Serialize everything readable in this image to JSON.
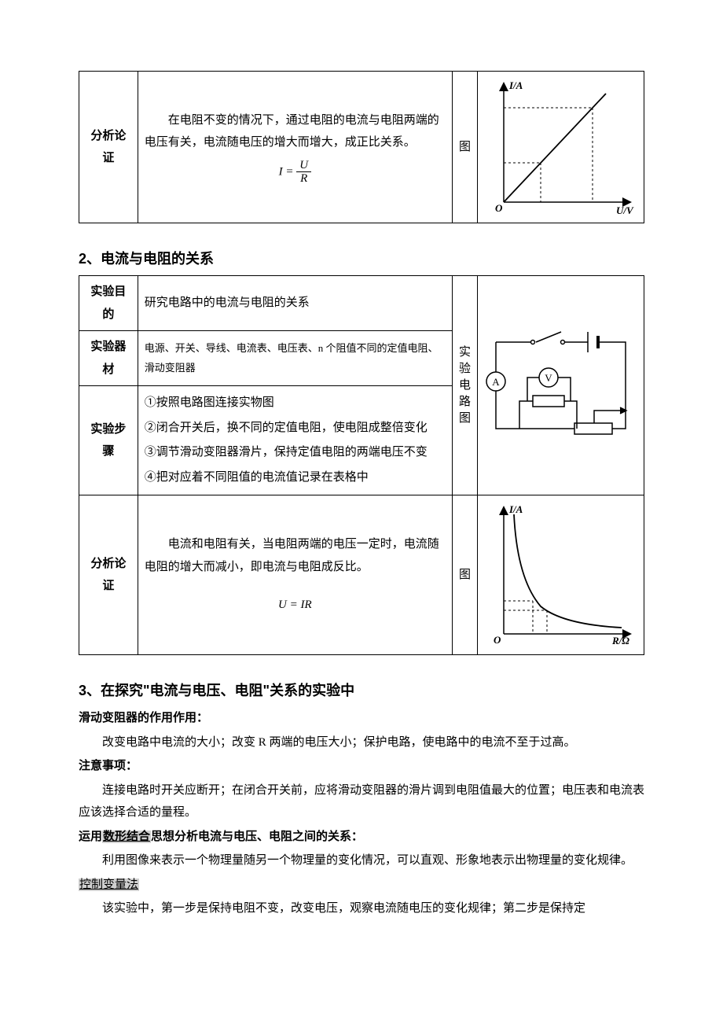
{
  "table1": {
    "row_label": "分析论证",
    "content": "在电阻不变的情况下，通过电阻的电流与电阻两端的电压有关，电流随电压的增大而增大，成正比关系。",
    "formula_left": "I",
    "formula_eq": " = ",
    "formula_num": "U",
    "formula_den": "R",
    "vert_label": "图",
    "graph": {
      "y_label": "I/A",
      "x_label": "U/V",
      "origin": "O",
      "axis_color": "#000000",
      "line_color": "#000000",
      "dash": "3,3"
    }
  },
  "section2": {
    "heading": "2、电流与电阻的关系",
    "rows": {
      "purpose_label": "实验目的",
      "purpose": "研究电路中的电流与电阻的关系",
      "equip_label": "实验器材",
      "equip": "电源、开关、导线、电流表、电压表、n 个阻值不同的定值电阻、滑动变阻器",
      "steps_label": "实验步骤",
      "step1": "①按照电路图连接实物图",
      "step2": "②闭合开关后，换不同的定值电阻，使电阻成整倍变化",
      "step3": "③调节滑动变阻器滑片，保持定值电阻的两端电压不变",
      "step4": "④把对应着不同阻值的电流值记录在表格中",
      "circuit_vert": "实验电路图",
      "analysis_label": "分析论证",
      "analysis": "电流和电阻有关，当电阻两端的电压一定时，电流随电阻的增大而减小，即电流与电阻成反比。",
      "formula": "U = IR",
      "graph_vert": "图"
    },
    "circuit": {
      "ammeter": "A",
      "voltmeter": "V"
    },
    "graph": {
      "y_label": "I/A",
      "x_label": "R/Ω",
      "origin": "O",
      "axis_color": "#000000",
      "dash": "3,3"
    }
  },
  "section3": {
    "heading": "3、在探究\"电流与电压、电阻\"关系的实验中",
    "sub1_label": "滑动变阻器的作用作用：",
    "sub1_text": "改变电路中电流的大小；改变 R 两端的电压大小；保护电路，使电路中的电流不至于过高。",
    "sub2_label": "注意事项：",
    "sub2_text": "连接电路时开关应断开；在闭合开关前，应将滑动变阻器的滑片调到电阻值最大的位置；电压表和电流表应该选择合适的量程。",
    "sub3_prefix": "运用",
    "sub3_hl": "数形结合",
    "sub3_suffix": "思想分析电流与电压、电阻之间的关系：",
    "sub3_text": "利用图像来表示一个物理量随另一个物理量的变化情况，可以直观、形象地表示出物理量的变化规律。",
    "sub4_hl": "控制变量法",
    "sub4_text": "该实验中，第一步是保持电阻不变，改变电压，观察电流随电压的变化规律；第二步是保持定"
  }
}
